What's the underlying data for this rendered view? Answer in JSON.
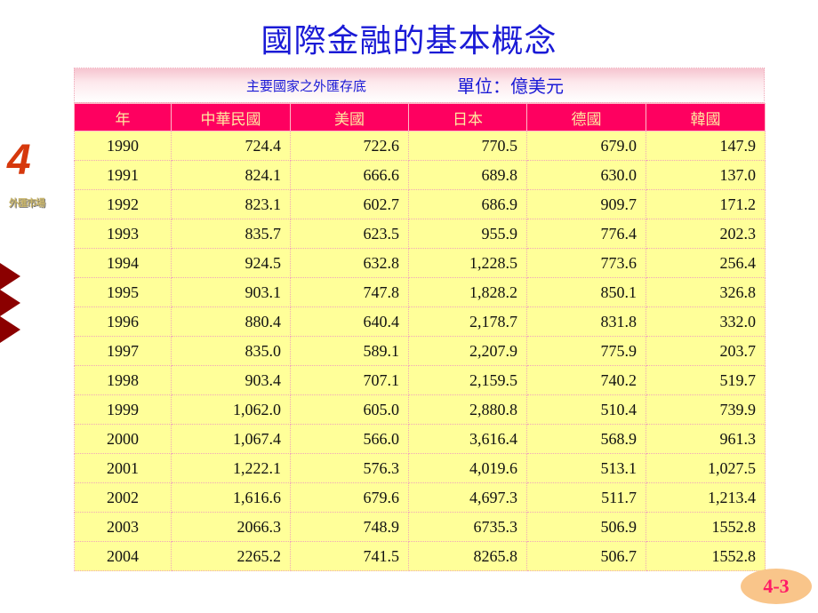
{
  "slide": {
    "title": "國際金融的基本概念",
    "chapter_number": "4",
    "chapter_label": "外匯市場",
    "page_number": "4-3",
    "colors": {
      "title": "#1a1ad6",
      "header_bg": "#fe0060",
      "header_text": "#ffe9a0",
      "cell_bg": "#ffff99",
      "chapter_number": "#d6380c",
      "arrow": "#8b0000",
      "page_badge_bg": "#f9c58a",
      "page_badge_text": "#ff1a66"
    }
  },
  "table": {
    "caption": "主要國家之外匯存底",
    "unit": "單位：億美元",
    "columns": [
      "年",
      "中華民國",
      "美國",
      "日本",
      "德國",
      "韓國"
    ],
    "rows": [
      [
        "1990",
        "724.4",
        "722.6",
        "770.5",
        "679.0",
        "147.9"
      ],
      [
        "1991",
        "824.1",
        "666.6",
        "689.8",
        "630.0",
        "137.0"
      ],
      [
        "1992",
        "823.1",
        "602.7",
        "686.9",
        "909.7",
        "171.2"
      ],
      [
        "1993",
        "835.7",
        "623.5",
        "955.9",
        "776.4",
        "202.3"
      ],
      [
        "1994",
        "924.5",
        "632.8",
        "1,228.5",
        "773.6",
        "256.4"
      ],
      [
        "1995",
        "903.1",
        "747.8",
        "1,828.2",
        "850.1",
        "326.8"
      ],
      [
        "1996",
        "880.4",
        "640.4",
        "2,178.7",
        "831.8",
        "332.0"
      ],
      [
        "1997",
        "835.0",
        "589.1",
        "2,207.9",
        "775.9",
        "203.7"
      ],
      [
        "1998",
        "903.4",
        "707.1",
        "2,159.5",
        "740.2",
        "519.7"
      ],
      [
        "1999",
        "1,062.0",
        "605.0",
        "2,880.8",
        "510.4",
        "739.9"
      ],
      [
        "2000",
        "1,067.4",
        "566.0",
        "3,616.4",
        "568.9",
        "961.3"
      ],
      [
        "2001",
        "1,222.1",
        "576.3",
        "4,019.6",
        "513.1",
        "1,027.5"
      ],
      [
        "2002",
        "1,616.6",
        "679.6",
        "4,697.3",
        "511.7",
        "1,213.4"
      ],
      [
        "2003",
        "2066.3",
        "748.9",
        "6735.3",
        "506.9",
        "1552.8"
      ],
      [
        "2004",
        "2265.2",
        "741.5",
        "8265.8",
        "506.7",
        "1552.8"
      ]
    ]
  }
}
